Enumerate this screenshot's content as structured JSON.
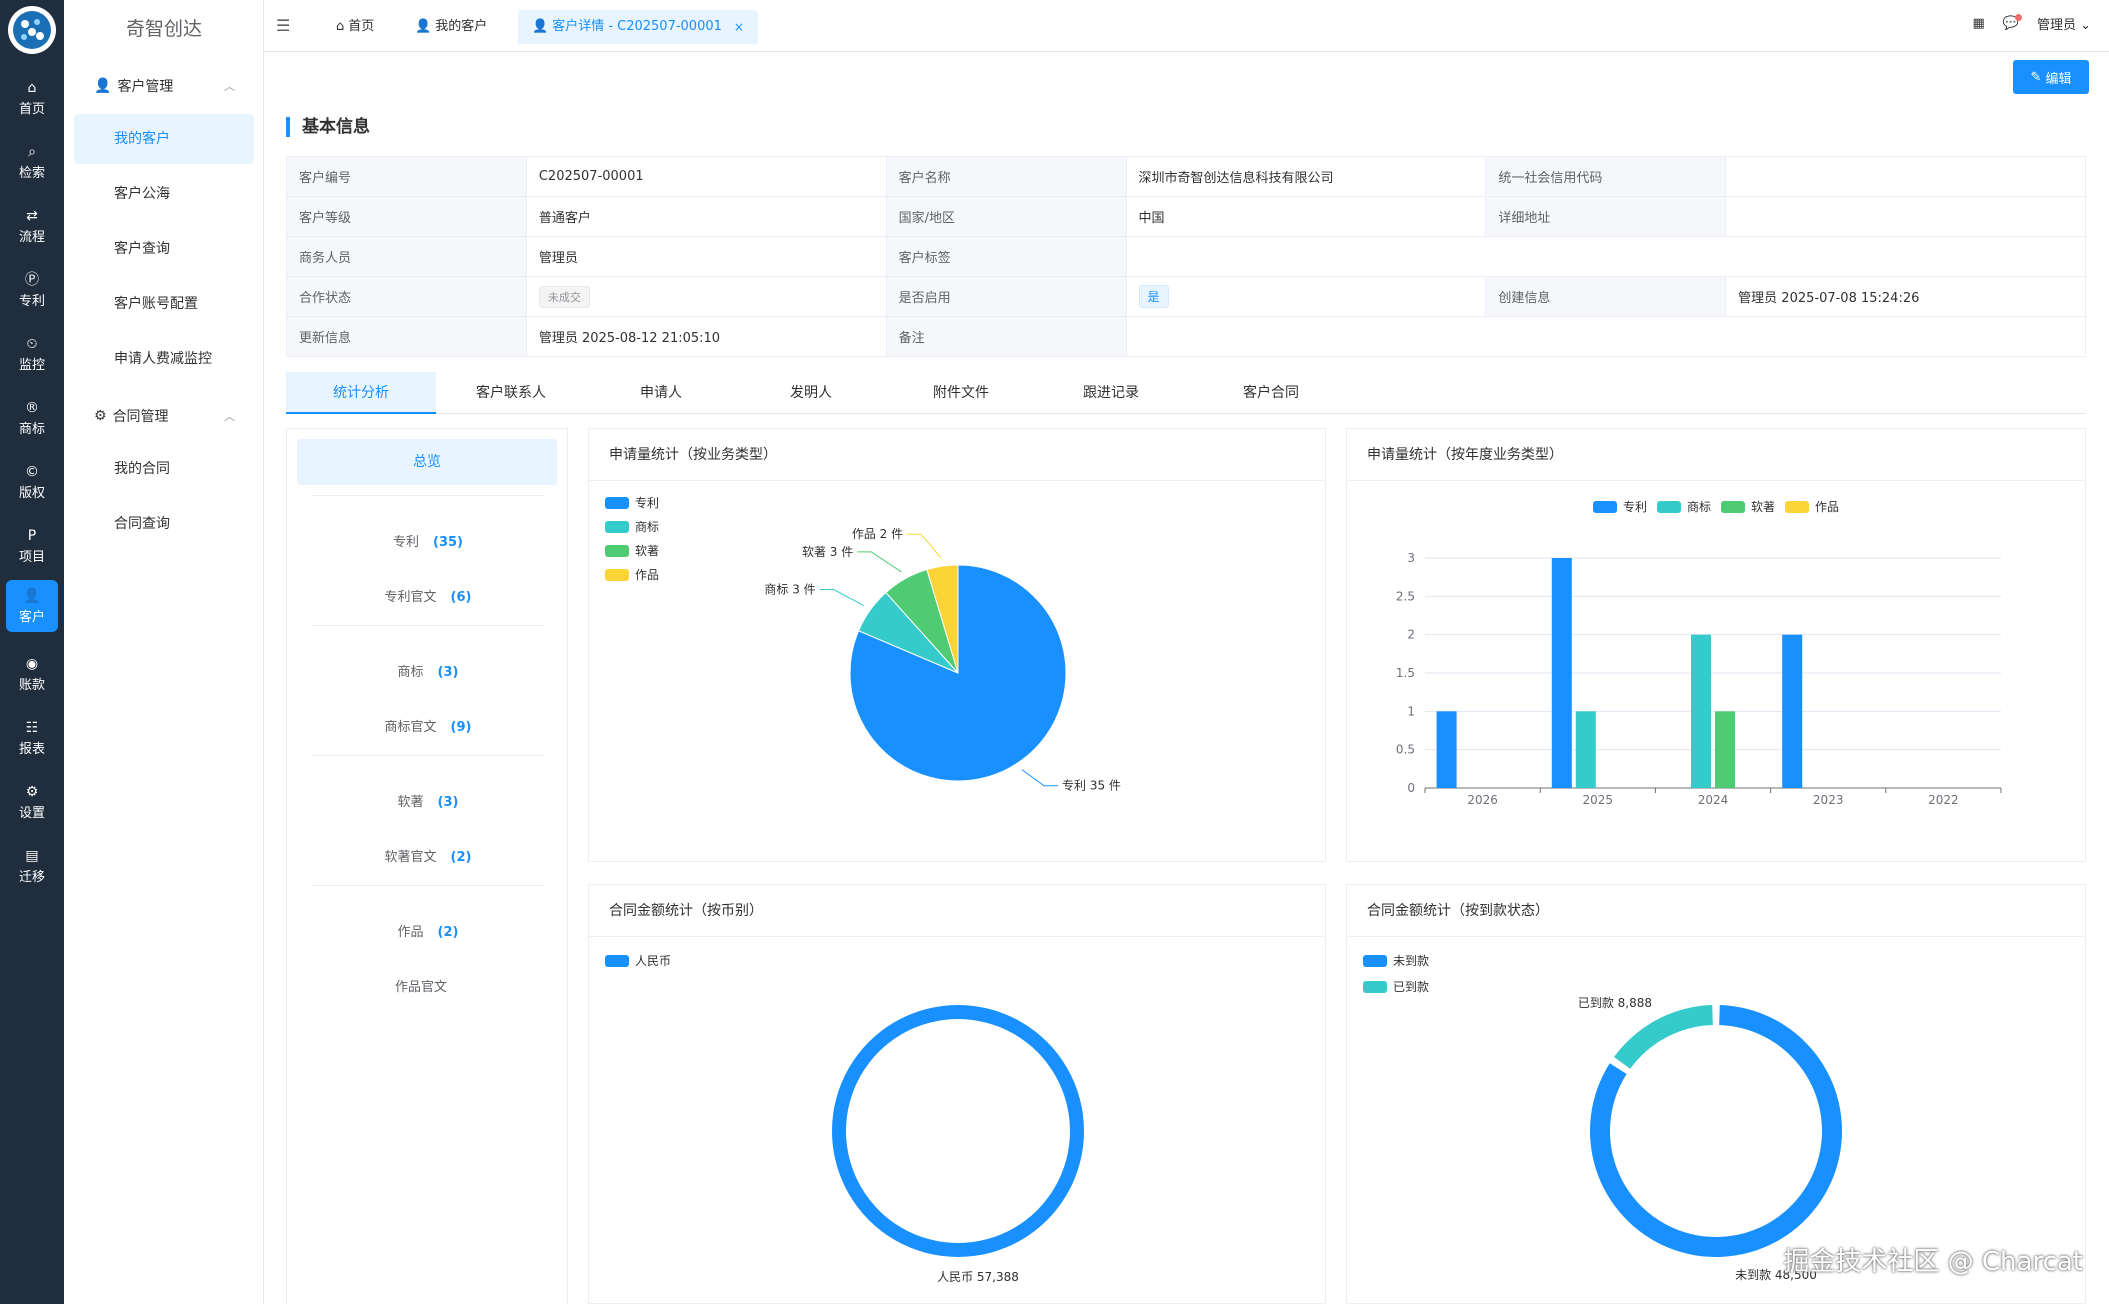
{
  "rail": {
    "items": [
      {
        "icon": "home-icon",
        "glyph": "⌂",
        "label": "首页"
      },
      {
        "icon": "search-icon",
        "glyph": "⌕",
        "label": "检索"
      },
      {
        "icon": "flow-icon",
        "glyph": "⇄",
        "label": "流程"
      },
      {
        "icon": "patent-icon",
        "glyph": "Ⓟ",
        "label": "专利"
      },
      {
        "icon": "monitor-icon",
        "glyph": "⏲",
        "label": "监控"
      },
      {
        "icon": "trademark-icon",
        "glyph": "®",
        "label": "商标"
      },
      {
        "icon": "copyright-icon",
        "glyph": "©",
        "label": "版权"
      },
      {
        "icon": "project-icon",
        "glyph": "P",
        "label": "项目"
      },
      {
        "icon": "customer-icon",
        "glyph": "👤",
        "label": "客户"
      },
      {
        "icon": "account-icon",
        "glyph": "◉",
        "label": "账款"
      },
      {
        "icon": "report-icon",
        "glyph": "☷",
        "label": "报表"
      },
      {
        "icon": "settings-icon",
        "glyph": "⚙",
        "label": "设置"
      },
      {
        "icon": "migrate-icon",
        "glyph": "▤",
        "label": "迁移"
      }
    ]
  },
  "submenu": {
    "brand": "奇智创达",
    "group1": "客户管理",
    "group1_items": [
      "我的客户",
      "客户公海",
      "客户查询",
      "客户账号配置",
      "申请人费减监控"
    ],
    "group2": "合同管理",
    "group2_items": [
      "我的合同",
      "合同查询"
    ]
  },
  "topbar": {
    "tabs": [
      {
        "label": "首页"
      },
      {
        "label": "我的客户"
      },
      {
        "label": "客户详情 - C202507-00001"
      }
    ],
    "user": "管理员"
  },
  "content": {
    "edit_label": "编辑",
    "section_title": "基本信息",
    "info": {
      "customer_no_k": "客户编号",
      "customer_no": "C202507-00001",
      "customer_name_k": "客户名称",
      "customer_name": "深圳市奇智创达信息科技有限公司",
      "credit_code_k": "统一社会信用代码",
      "credit_code": "",
      "level_k": "客户等级",
      "level": "普通客户",
      "country_k": "国家/地区",
      "country": "中国",
      "address_k": "详细地址",
      "address": "",
      "sales_k": "商务人员",
      "sales": "管理员",
      "tags_k": "客户标签",
      "tags": "",
      "coop_k": "合作状态",
      "coop": "未成交",
      "enabled_k": "是否启用",
      "enabled": "是",
      "created_k": "创建信息",
      "created": "管理员  2025-07-08 15:24:26",
      "updated_k": "更新信息",
      "updated": "管理员  2025-08-12 21:05:10",
      "remark_k": "备注",
      "remark": ""
    },
    "tabs": [
      "统计分析",
      "客户联系人",
      "申请人",
      "发明人",
      "附件文件",
      "跟进记录",
      "客户合同"
    ],
    "stats": {
      "overview": "总览",
      "rows": [
        {
          "label": "专利",
          "count": "(35)"
        },
        {
          "label": "专利官文",
          "count": "(6)"
        },
        {
          "label": "商标",
          "count": "(3)"
        },
        {
          "label": "商标官文",
          "count": "(9)"
        },
        {
          "label": "软著",
          "count": "(3)"
        },
        {
          "label": "软著官文",
          "count": "(2)"
        },
        {
          "label": "作品",
          "count": "(2)"
        },
        {
          "label": "作品官文",
          "count": ""
        }
      ]
    },
    "cards": {
      "pie_title": "申请量统计（按业务类型）",
      "bar_title": "申请量统计（按年度业务类型）",
      "currency_title": "合同金额统计（按币别）",
      "payment_title": "合同金额统计（按到款状态）"
    }
  },
  "chart_data": [
    {
      "type": "pie",
      "title": "申请量统计（按业务类型）",
      "categories": [
        "专利",
        "商标",
        "软著",
        "作品"
      ],
      "values": [
        35,
        3,
        3,
        2
      ],
      "labels": [
        "专利 35 件",
        "商标 3 件",
        "软著 3 件",
        "作品 2 件"
      ],
      "colors": [
        "#1890ff",
        "#36cbcb",
        "#4ecb73",
        "#fbd437"
      ],
      "legend": "top-left"
    },
    {
      "type": "bar",
      "title": "申请量统计（按年度业务类型）",
      "categories": [
        "2026",
        "2025",
        "2024",
        "2023",
        "2022"
      ],
      "series": [
        {
          "name": "专利",
          "values": [
            1,
            3,
            0,
            2,
            0
          ],
          "color": "#1890ff"
        },
        {
          "name": "商标",
          "values": [
            0,
            1,
            2,
            0,
            0
          ],
          "color": "#36cbcb"
        },
        {
          "name": "软著",
          "values": [
            0,
            0,
            1,
            0,
            0
          ],
          "color": "#4ecb73"
        },
        {
          "name": "作品",
          "values": [
            0,
            0,
            0,
            0,
            0
          ],
          "color": "#fbd437"
        }
      ],
      "ylim": [
        0,
        3
      ],
      "yticks": [
        "0",
        "0.5",
        "1",
        "1.5",
        "2",
        "2.5",
        "3"
      ],
      "legend": "top-center",
      "grid": true
    },
    {
      "type": "pie",
      "title": "合同金额统计（按币别）",
      "categories": [
        "人民币"
      ],
      "values": [
        57388
      ],
      "labels": [
        "人民币 57,388"
      ],
      "colors": [
        "#1890ff"
      ],
      "donut": true,
      "legend": "top-left"
    },
    {
      "type": "pie",
      "title": "合同金额统计（按到款状态）",
      "categories": [
        "未到款",
        "已到款"
      ],
      "values": [
        48500,
        8888
      ],
      "labels": [
        "未到款 48,500",
        "已到款 8,888"
      ],
      "colors": [
        "#1890ff",
        "#36cbcb"
      ],
      "donut": true,
      "legend": "top-left"
    }
  ],
  "watermark": "掘金技术社区 @ Charcat"
}
